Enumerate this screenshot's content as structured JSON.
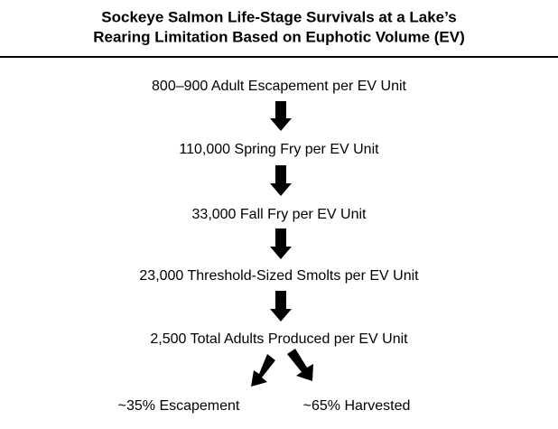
{
  "title": [
    "Sockeye Salmon Life-Stage Survivals at a Lake’s",
    "Rearing Limitation Based on Euphotic Volume (EV)"
  ],
  "nodes": [
    {
      "label": "800–900 Adult Escapement per EV Unit"
    },
    {
      "label": "110,000 Spring Fry per EV Unit"
    },
    {
      "label": "33,000 Fall Fry per EV Unit"
    },
    {
      "label": "23,000 Threshold-Sized Smolts per EV Unit"
    },
    {
      "label": "2,500 Total Adults Produced per EV Unit"
    }
  ],
  "outcomes": [
    {
      "label": "~35% Escapement"
    },
    {
      "label": "~65% Harvested"
    }
  ]
}
